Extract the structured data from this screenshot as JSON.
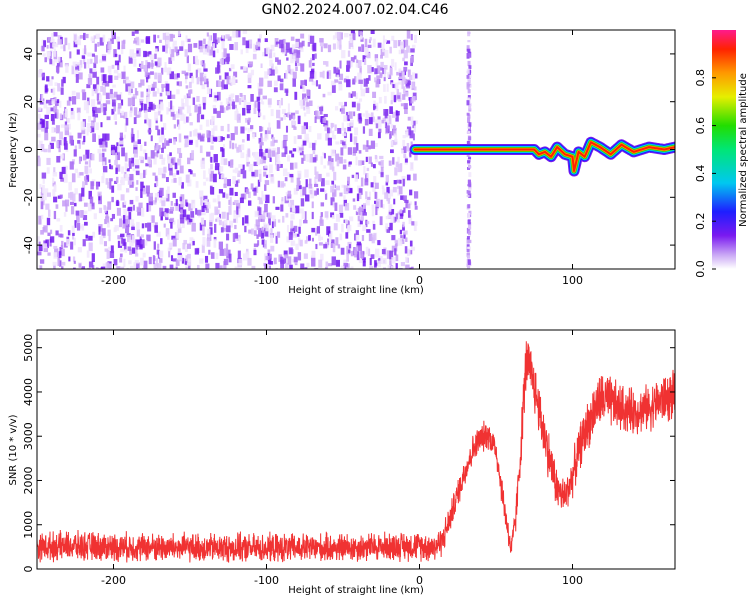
{
  "title": "GN02.2024.007.02.04.C46",
  "chart_data": [
    {
      "type": "heatmap",
      "xlabel": "Height of straight line (km)",
      "ylabel": "Frequency (Hz)",
      "xlim": [
        -250,
        167
      ],
      "ylim": [
        -50,
        50
      ],
      "xticks": [
        -200,
        -100,
        0,
        100
      ],
      "yticks": [
        -40,
        -20,
        0,
        20,
        40
      ],
      "colorbar": {
        "label": "Normalized spectral amplitude",
        "range": [
          0,
          1
        ],
        "ticks": [
          0.0,
          0.2,
          0.4,
          0.6,
          0.8
        ],
        "tick_labels": [
          "0.0",
          "0.2",
          "0.4",
          "0.6",
          "0.8"
        ]
      },
      "noise_region_x": [
        -250,
        -3
      ],
      "noise_stripe_x": 32,
      "signal_ridge": {
        "x": [
          -3,
          0,
          10,
          20,
          30,
          40,
          50,
          60,
          70,
          75,
          78,
          82,
          86,
          90,
          95,
          100,
          101,
          104,
          108,
          112,
          118,
          125,
          132,
          140,
          150,
          160,
          167
        ],
        "y": [
          0,
          0,
          0,
          0,
          0,
          0,
          0,
          0,
          0,
          0,
          -2,
          -1,
          -3,
          1,
          -2,
          -3,
          -9,
          -1,
          -3,
          3,
          1,
          -2,
          2,
          -1,
          1,
          0,
          1
        ]
      }
    },
    {
      "type": "line",
      "xlabel": "Height of straight line (km)",
      "ylabel": "SNR (10 * v/v)",
      "xlim": [
        -250,
        167
      ],
      "ylim": [
        0,
        5400
      ],
      "xticks": [
        -200,
        -100,
        0,
        100
      ],
      "yticks": [
        0,
        1000,
        2000,
        3000,
        4000,
        5000
      ],
      "series": [
        {
          "color": "#f03232",
          "x": [
            -250,
            -230,
            -200,
            -150,
            -100,
            -50,
            -10,
            0,
            10,
            15,
            20,
            25,
            30,
            35,
            40,
            45,
            50,
            55,
            60,
            63,
            66,
            68,
            70,
            75,
            80,
            85,
            90,
            95,
            100,
            105,
            110,
            115,
            120,
            130,
            140,
            150,
            160,
            167
          ],
          "y": [
            500,
            520,
            500,
            480,
            470,
            480,
            520,
            520,
            500,
            650,
            1150,
            1700,
            2250,
            2700,
            2950,
            3050,
            2700,
            1500,
            400,
            1200,
            2600,
            3800,
            4700,
            4150,
            3300,
            2500,
            1800,
            1600,
            2100,
            2800,
            3250,
            3650,
            3850,
            3650,
            3550,
            3650,
            3850,
            3900
          ],
          "noise_amplitude": [
            380,
            380,
            380,
            380,
            380,
            380,
            380,
            380,
            400,
            400,
            380,
            380,
            400,
            400,
            400,
            400,
            400,
            400,
            350,
            450,
            550,
            700,
            800,
            700,
            700,
            650,
            550,
            500,
            550,
            600,
            650,
            700,
            750,
            650,
            600,
            600,
            650,
            650
          ]
        }
      ]
    }
  ]
}
